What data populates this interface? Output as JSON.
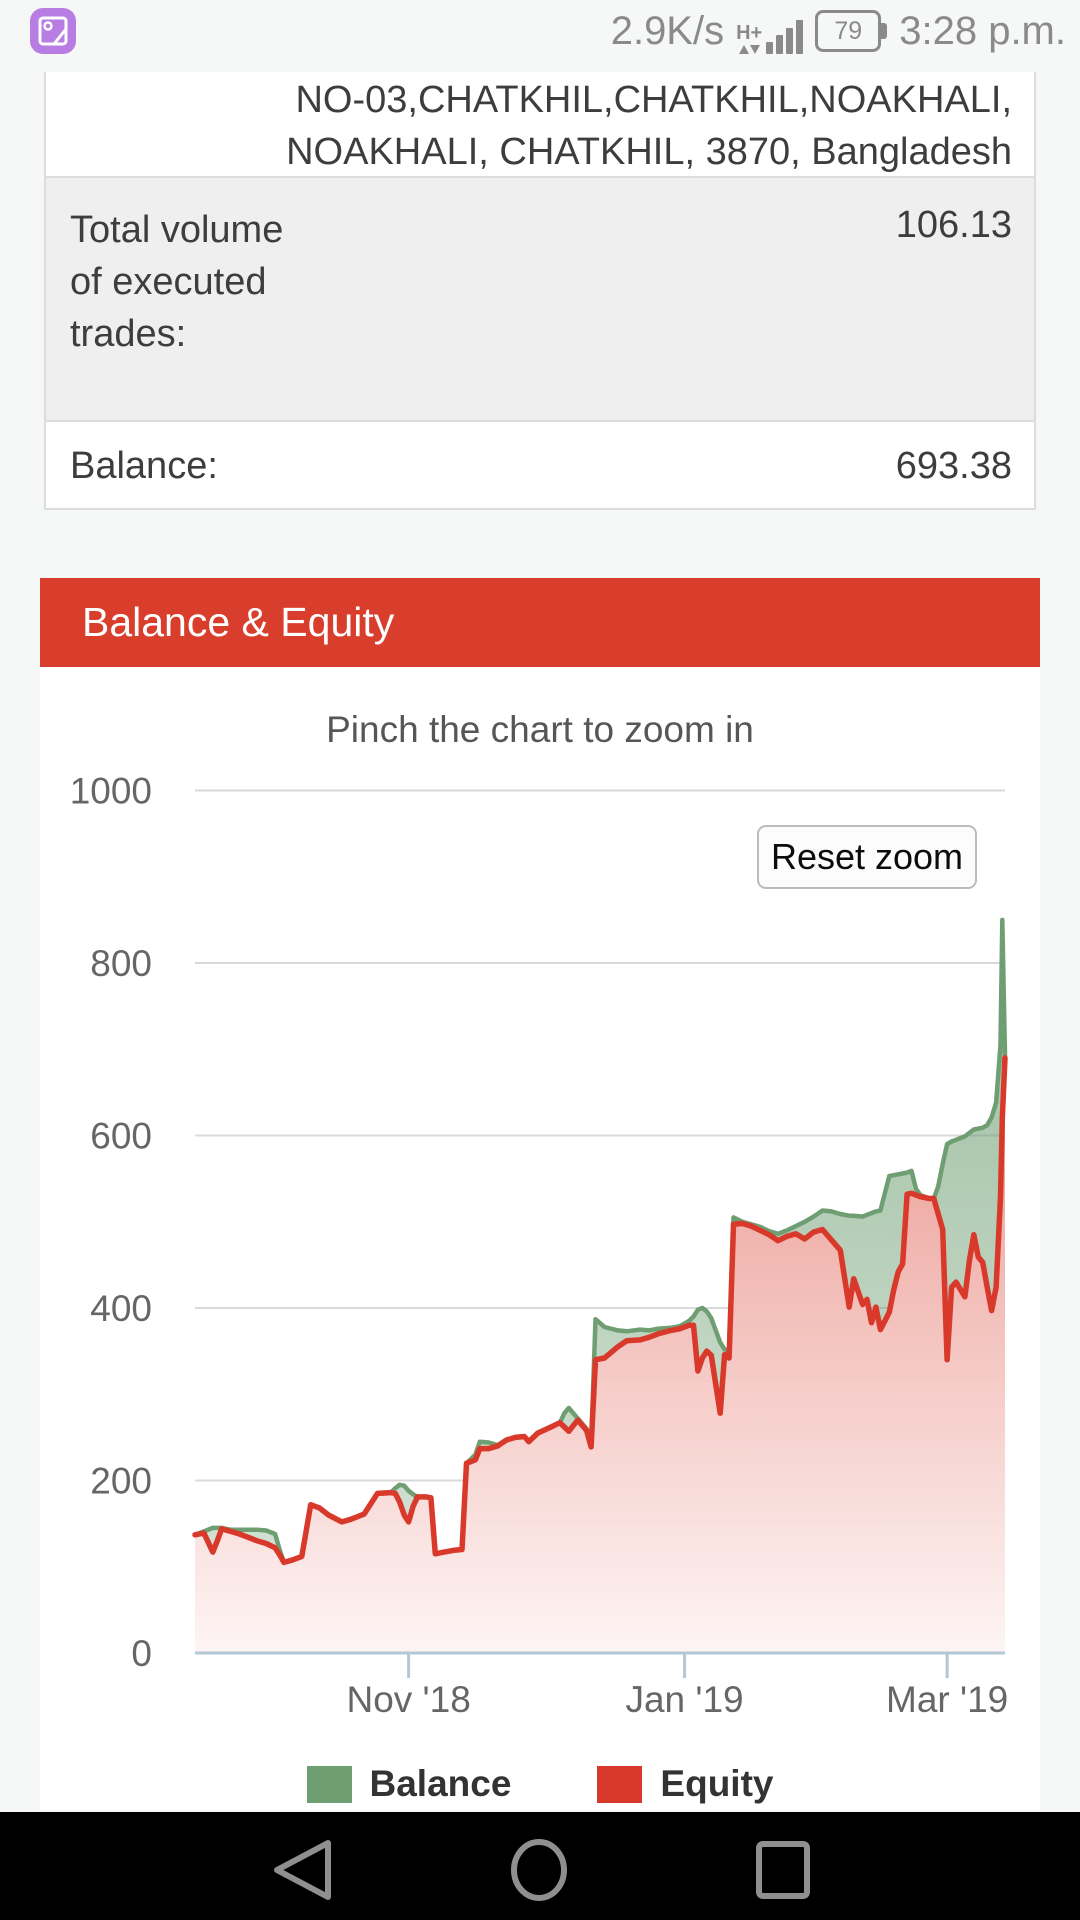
{
  "status_bar": {
    "notification_icon": "screenshot-image-icon",
    "network_speed": "2.9K/s",
    "network_type": "H+",
    "battery_percent": "79",
    "time": "3:28 p.m."
  },
  "account_table": {
    "address_line1": "NO-03,CHATKHIL,CHATKHIL,NOAKHALI,",
    "address_line2": "NOAKHALI, CHATKHIL, 3870, Bangladesh",
    "total_volume_label": "Total volume of executed trades:",
    "total_volume_value": "106.13",
    "balance_label": "Balance:",
    "balance_value": "693.38"
  },
  "chart": {
    "header": "Balance & Equity",
    "hint": "Pinch the chart to zoom in",
    "reset_button": "Reset zoom",
    "legend": [
      {
        "label": "Balance",
        "color": "#6f9e73"
      },
      {
        "label": "Equity",
        "color": "#d9392b"
      }
    ]
  },
  "chart_data": {
    "type": "area",
    "title": "Balance & Equity",
    "subtitle": "Pinch the chart to zoom in",
    "legend_position": "bottom",
    "grid": true,
    "x_axis": {
      "start_date": "2018-09-14",
      "days_span": 182,
      "ticks": [
        {
          "label": "Nov '18",
          "day": 48
        },
        {
          "label": "Jan '19",
          "day": 110
        },
        {
          "label": "Mar '19",
          "day": 169
        }
      ]
    },
    "y_axis": {
      "min": 0,
      "max": 1000,
      "ticks": [
        0,
        200,
        400,
        600,
        800,
        1000
      ]
    },
    "series_meta": [
      {
        "name": "Balance",
        "line_color": "#6f9e73",
        "fill_top": "rgba(113,160,117,0.78)",
        "fill_bottom": "rgba(113,160,117,0.26)"
      },
      {
        "name": "Equity",
        "line_color": "#d9392b",
        "fill_top": "rgba(217,57,42,0.72)",
        "fill_bottom": "rgba(217,57,42,0.05)"
      }
    ],
    "points_format": [
      "day_index",
      "equity",
      "balance"
    ],
    "points": [
      [
        0,
        137,
        137
      ],
      [
        2,
        139,
        141
      ],
      [
        4,
        117,
        145
      ],
      [
        5,
        130,
        145
      ],
      [
        6,
        144,
        145
      ],
      [
        8,
        141,
        143
      ],
      [
        10,
        138,
        143
      ],
      [
        12,
        134,
        143
      ],
      [
        14,
        130,
        143
      ],
      [
        16,
        127,
        142
      ],
      [
        18,
        122,
        138
      ],
      [
        19,
        114,
        120
      ],
      [
        20,
        105,
        105
      ],
      [
        22,
        108,
        108
      ],
      [
        24,
        112,
        112
      ],
      [
        26,
        172,
        172
      ],
      [
        28,
        168,
        168
      ],
      [
        30,
        160,
        160
      ],
      [
        33,
        152,
        152
      ],
      [
        35,
        155,
        155
      ],
      [
        38,
        161,
        161
      ],
      [
        41,
        185,
        185
      ],
      [
        44,
        186,
        186
      ],
      [
        45,
        185,
        191
      ],
      [
        46,
        175,
        195
      ],
      [
        47,
        160,
        194
      ],
      [
        48,
        152,
        188
      ],
      [
        49,
        170,
        184
      ],
      [
        50,
        181,
        181
      ],
      [
        52,
        181,
        181
      ],
      [
        53,
        180,
        180
      ],
      [
        54,
        115,
        115
      ],
      [
        56,
        117,
        117
      ],
      [
        58,
        119,
        119
      ],
      [
        60,
        120,
        120
      ],
      [
        61,
        220,
        220
      ],
      [
        63,
        224,
        230
      ],
      [
        64,
        237,
        245
      ],
      [
        66,
        237,
        244
      ],
      [
        68,
        240,
        241
      ],
      [
        70,
        247,
        247
      ],
      [
        72,
        250,
        250
      ],
      [
        74,
        251,
        251
      ],
      [
        75,
        245,
        245
      ],
      [
        77,
        255,
        255
      ],
      [
        80,
        262,
        262
      ],
      [
        82,
        267,
        267
      ],
      [
        83,
        262,
        278
      ],
      [
        84,
        257,
        284
      ],
      [
        86,
        270,
        272
      ],
      [
        88,
        258,
        260
      ],
      [
        89,
        239,
        239
      ],
      [
        90,
        340,
        387
      ],
      [
        92,
        342,
        378
      ],
      [
        95,
        355,
        374
      ],
      [
        97,
        362,
        373
      ],
      [
        100,
        363,
        375
      ],
      [
        102,
        366,
        374
      ],
      [
        104,
        370,
        376
      ],
      [
        107,
        374,
        377
      ],
      [
        109,
        376,
        379
      ],
      [
        111,
        380,
        385
      ],
      [
        112,
        380,
        390
      ],
      [
        113,
        327,
        398
      ],
      [
        114,
        342,
        400
      ],
      [
        115,
        350,
        396
      ],
      [
        116,
        345,
        388
      ],
      [
        118,
        278,
        360
      ],
      [
        119,
        346,
        352
      ],
      [
        120,
        342,
        350
      ],
      [
        121,
        497,
        505
      ],
      [
        123,
        498,
        500
      ],
      [
        125,
        495,
        497
      ],
      [
        127,
        490,
        494
      ],
      [
        129,
        485,
        489
      ],
      [
        131,
        478,
        486
      ],
      [
        133,
        483,
        490
      ],
      [
        135,
        486,
        495
      ],
      [
        137,
        480,
        500
      ],
      [
        139,
        488,
        506
      ],
      [
        141,
        491,
        513
      ],
      [
        143,
        479,
        512
      ],
      [
        145,
        467,
        509
      ],
      [
        147,
        401,
        507
      ],
      [
        148,
        434,
        507
      ],
      [
        150,
        404,
        506
      ],
      [
        151,
        410,
        508
      ],
      [
        152,
        383,
        510
      ],
      [
        153,
        401,
        512
      ],
      [
        154,
        375,
        513
      ],
      [
        156,
        395,
        553
      ],
      [
        157,
        421,
        554
      ],
      [
        158,
        442,
        555
      ],
      [
        159,
        451,
        556
      ],
      [
        160,
        532,
        557
      ],
      [
        161,
        533,
        559
      ],
      [
        162,
        531,
        538
      ],
      [
        163,
        529,
        531
      ],
      [
        165,
        527,
        527
      ],
      [
        166,
        527,
        527
      ],
      [
        167,
        509,
        541
      ],
      [
        168,
        491,
        567
      ],
      [
        169,
        340,
        590
      ],
      [
        170,
        424,
        593
      ],
      [
        171,
        430,
        595
      ],
      [
        173,
        413,
        599
      ],
      [
        174,
        455,
        603
      ],
      [
        175,
        485,
        607
      ],
      [
        176,
        459,
        608
      ],
      [
        177,
        453,
        609
      ],
      [
        178,
        424,
        612
      ],
      [
        179,
        397,
        621
      ],
      [
        180,
        424,
        638
      ],
      [
        181,
        529,
        705
      ],
      [
        181.4,
        620,
        850
      ],
      [
        182,
        690,
        693
      ]
    ]
  },
  "nav_bar": {
    "icons": [
      "back",
      "home",
      "recents"
    ]
  }
}
